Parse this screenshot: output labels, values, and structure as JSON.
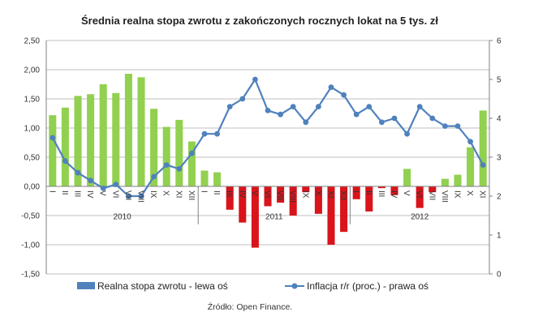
{
  "chart_data": {
    "type": "bar+line",
    "title": "Średnia realna stopa zwrotu z zakończonych rocznych lokat na 5 tys. zł",
    "source": "Źródło: Open Finance.",
    "left_axis": {
      "min": -1.5,
      "max": 2.5,
      "step": 0.5,
      "tick_labels": [
        "2,50",
        "2,00",
        "1,50",
        "1,00",
        "0,50",
        "0,00",
        "-0,50",
        "-1,00",
        "-1,50"
      ]
    },
    "right_axis": {
      "min": 0,
      "max": 6,
      "step": 1,
      "tick_labels": [
        "6",
        "5",
        "4",
        "3",
        "2",
        "1",
        "0"
      ]
    },
    "categories": [
      "I",
      "II",
      "III",
      "IV",
      "V",
      "VI",
      "VII",
      "VIII",
      "IX",
      "X",
      "XI",
      "XII",
      "I",
      "II",
      "III",
      "IV",
      "V",
      "VI",
      "VII",
      "VIII",
      "IX",
      "X",
      "XI",
      "XII",
      "I",
      "II",
      "III",
      "IV",
      "V",
      "VI",
      "VII",
      "VIII",
      "IX",
      "X",
      "XI"
    ],
    "years": [
      {
        "label": "2010",
        "count": 12
      },
      {
        "label": "2011",
        "count": 12
      },
      {
        "label": "2012",
        "count": 11
      }
    ],
    "series": [
      {
        "name": "Realna stopa zwrotu - lewa oś",
        "axis": "left",
        "kind": "bar",
        "values": [
          1.22,
          1.35,
          1.55,
          1.58,
          1.75,
          1.6,
          1.93,
          1.87,
          1.33,
          1.02,
          1.14,
          0.77,
          0.27,
          0.24,
          -0.4,
          -0.62,
          -1.05,
          -0.34,
          -0.28,
          -0.5,
          -0.1,
          -0.47,
          -1.0,
          -0.78,
          -0.22,
          -0.43,
          -0.03,
          -0.15,
          0.3,
          -0.37,
          -0.1,
          0.13,
          0.2,
          0.67,
          1.3
        ],
        "positive_color": "#92d050",
        "negative_color": "#d9141b",
        "legend_color": "#4f81bd"
      },
      {
        "name": "Inflacja r/r (proc.) - prawa oś",
        "axis": "right",
        "kind": "line",
        "values": [
          3.5,
          2.9,
          2.6,
          2.4,
          2.2,
          2.3,
          2.0,
          2.0,
          2.5,
          2.8,
          2.7,
          3.1,
          3.6,
          3.6,
          4.3,
          4.5,
          5.0,
          4.2,
          4.1,
          4.3,
          3.9,
          4.3,
          4.8,
          4.6,
          4.1,
          4.3,
          3.9,
          4.0,
          3.6,
          4.3,
          4.0,
          3.8,
          3.8,
          3.4,
          2.8
        ],
        "color": "#4f81bd"
      }
    ],
    "grid": true,
    "legend": "bottom"
  }
}
